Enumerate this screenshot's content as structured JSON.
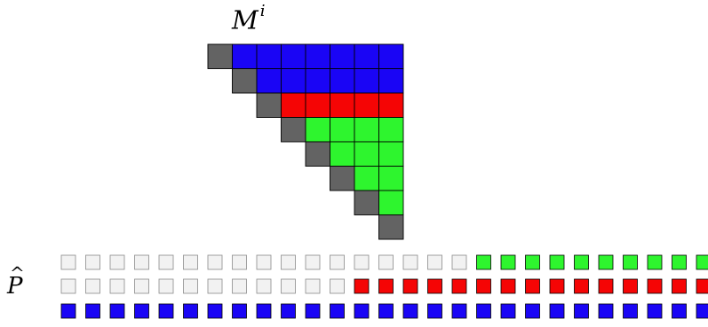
{
  "labels": {
    "matrix_base": "M",
    "matrix_sup": "i",
    "vector": "P"
  },
  "colors": {
    "gray": "#636363",
    "blue": "#1a05f5",
    "red": "#f50505",
    "green": "#2ef52e",
    "empty": "#f2f2f2"
  },
  "matrix": {
    "size": 8,
    "row_colors": [
      "blue",
      "blue",
      "red",
      "green",
      "green",
      "green",
      "green",
      "green"
    ]
  },
  "vector_rows": [
    {
      "empty": 17,
      "filled": 10,
      "color": "green"
    },
    {
      "empty": 12,
      "filled": 15,
      "color": "red"
    },
    {
      "empty": 0,
      "filled": 27,
      "color": "blue"
    }
  ]
}
